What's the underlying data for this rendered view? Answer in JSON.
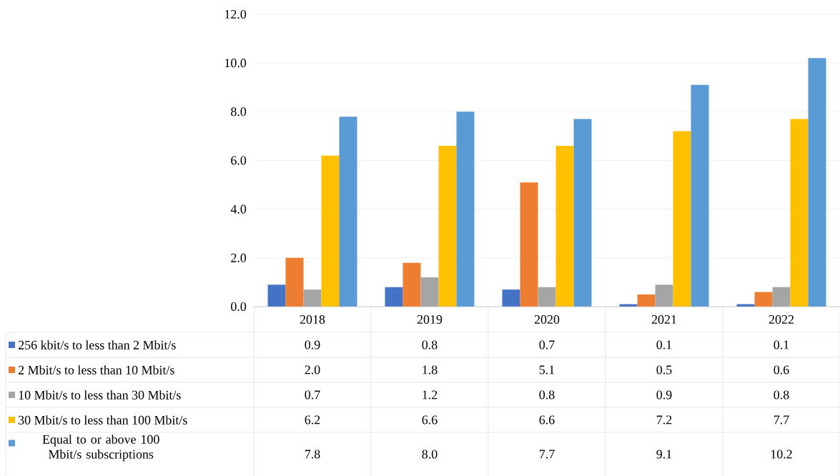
{
  "chart_data": {
    "type": "bar",
    "categories": [
      "2018",
      "2019",
      "2020",
      "2021",
      "2022"
    ],
    "series": [
      {
        "name": "256 kbit/s to less than 2 Mbit/s",
        "color": "#4472c4",
        "values": [
          0.9,
          0.8,
          0.7,
          0.1,
          0.1
        ],
        "value_labels": [
          "0.9",
          "0.8",
          "0.7",
          "0.1",
          "0.1"
        ]
      },
      {
        "name": "2 Mbit/s to less than 10 Mbit/s",
        "color": "#ed7d31",
        "values": [
          2.0,
          1.8,
          5.1,
          0.5,
          0.6
        ],
        "value_labels": [
          "2.0",
          "1.8",
          "5.1",
          "0.5",
          "0.6"
        ]
      },
      {
        "name": "10 Mbit/s to less than 30 Mbit/s",
        "color": "#a5a5a5",
        "values": [
          0.7,
          1.2,
          0.8,
          0.9,
          0.8
        ],
        "value_labels": [
          "0.7",
          "1.2",
          "0.8",
          "0.9",
          "0.8"
        ]
      },
      {
        "name": "30 Mbit/s to less than 100 Mbit/s",
        "color": "#ffc000",
        "values": [
          6.2,
          6.6,
          6.6,
          7.2,
          7.7
        ],
        "value_labels": [
          "6.2",
          "6.6",
          "6.6",
          "7.2",
          "7.7"
        ]
      },
      {
        "name": "Equal to or above 100 Mbit/s subscriptions",
        "color": "#5b9bd5",
        "values": [
          7.8,
          8.0,
          7.7,
          9.1,
          10.2
        ],
        "value_labels": [
          "7.8",
          "8.0",
          "7.7",
          "9.1",
          "10.2"
        ]
      }
    ],
    "ylim": [
      0,
      12
    ],
    "yticks": [
      {
        "value": 0,
        "label": "0.0"
      },
      {
        "value": 2,
        "label": "2.0"
      },
      {
        "value": 4,
        "label": "4.0"
      },
      {
        "value": 6,
        "label": "6.0"
      },
      {
        "value": 8,
        "label": "8.0"
      },
      {
        "value": 10,
        "label": "10.0"
      },
      {
        "value": 12,
        "label": "12.0"
      }
    ],
    "grid": "y",
    "legend": "bottom"
  }
}
